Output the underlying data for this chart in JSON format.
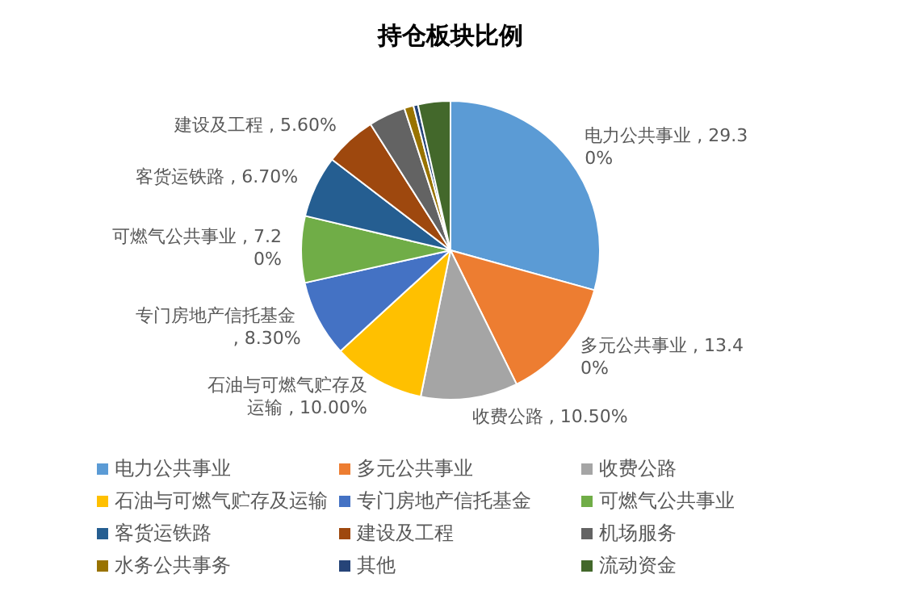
{
  "chart_data": {
    "type": "pie",
    "title": "持仓板块比例",
    "categories": [
      "电力公共事业",
      "多元公共事业",
      "收费公路",
      "石油与可燃气贮存及运输",
      "专门房地产信托基金",
      "可燃气公共事业",
      "客货运铁路",
      "建设及工程",
      "机场服务",
      "水务公共事务",
      "其他",
      "流动资金"
    ],
    "values": [
      29.3,
      13.4,
      10.5,
      10.0,
      8.3,
      7.2,
      6.7,
      5.6,
      4.0,
      1.0,
      0.5,
      3.5
    ],
    "value_labels": [
      ", 29.30%",
      ", 13.40%",
      ", 10.50%",
      ", 10.00%",
      ", 8.30%",
      ", 7.20%",
      ", 6.70%",
      ", 5.60%",
      null,
      null,
      null,
      null
    ],
    "colors": [
      "#5b9bd5",
      "#ed7d31",
      "#a5a5a5",
      "#ffc000",
      "#4472c4",
      "#70ad47",
      "#255e91",
      "#9e480e",
      "#636363",
      "#997300",
      "#264478",
      "#43682b"
    ],
    "legend": "bottom"
  }
}
